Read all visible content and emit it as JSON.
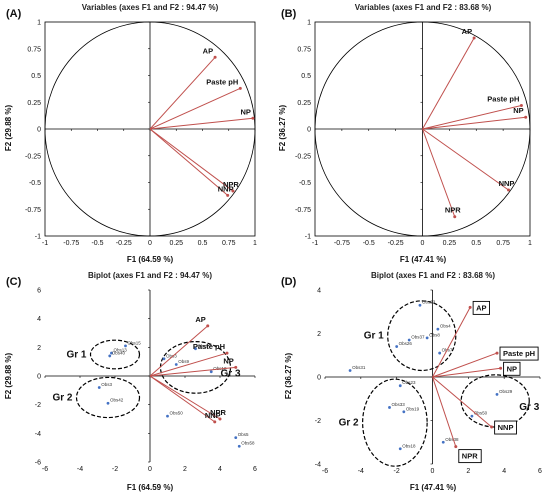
{
  "chart_data": [
    {
      "panel": "(A)",
      "type": "scatter",
      "title": "Variables (axes F1 and F2 : 94.47 %)",
      "xlabel": "F1 (64.59 %)",
      "ylabel": "F2 (29.88 %)",
      "xlim": [
        -1,
        1
      ],
      "ylim": [
        -1,
        1
      ],
      "x_ticks": [
        -1,
        -0.75,
        -0.5,
        -0.25,
        0,
        0.25,
        0.5,
        0.75,
        1
      ],
      "x_tick_labels": [
        "-1",
        "-0.75",
        "-0.5",
        "-0.25",
        "0",
        "0.25",
        "0.5",
        "0.75",
        "1"
      ],
      "y_ticks": [
        -1,
        -0.75,
        -0.5,
        -0.25,
        0,
        0.25,
        0.5,
        0.75,
        1
      ],
      "y_tick_labels": [
        "-1",
        "-0.75",
        "-0.5",
        "-0.25",
        "0",
        "0.25",
        "0.5",
        "0.75",
        "1"
      ],
      "correlation_circle": true,
      "vectors": [
        {
          "name": "AP",
          "x": 0.62,
          "y": 0.67
        },
        {
          "name": "Paste pH",
          "x": 0.86,
          "y": 0.38
        },
        {
          "name": "NP",
          "x": 0.98,
          "y": 0.1
        },
        {
          "name": "NPR",
          "x": 0.79,
          "y": -0.58
        },
        {
          "name": "NNP",
          "x": 0.74,
          "y": -0.62
        }
      ]
    },
    {
      "panel": "(B)",
      "type": "scatter",
      "title": "Variables (axes F1 and F2 : 83.68 %)",
      "xlabel": "F1 (47.41 %)",
      "ylabel": "F2 (36.27 %)",
      "xlim": [
        -1,
        1
      ],
      "ylim": [
        -1,
        1
      ],
      "x_ticks": [
        -1,
        -0.75,
        -0.5,
        -0.25,
        0,
        0.25,
        0.5,
        0.75,
        1
      ],
      "x_tick_labels": [
        "-1",
        "-0.75",
        "-0.5",
        "-0.25",
        "0",
        "0.25",
        "0.5",
        "0.75",
        "1"
      ],
      "y_ticks": [
        -1,
        -0.75,
        -0.5,
        -0.25,
        0,
        0.25,
        0.5,
        0.75,
        1
      ],
      "y_tick_labels": [
        "-1",
        "-0.75",
        "-0.5",
        "-0.25",
        "0",
        "0.25",
        "0.5",
        "0.75",
        "1"
      ],
      "correlation_circle": true,
      "vectors": [
        {
          "name": "AP",
          "x": 0.48,
          "y": 0.85
        },
        {
          "name": "Paste pH",
          "x": 0.92,
          "y": 0.22
        },
        {
          "name": "NP",
          "x": 0.96,
          "y": 0.11
        },
        {
          "name": "NNP",
          "x": 0.8,
          "y": -0.57
        },
        {
          "name": "NPR",
          "x": 0.3,
          "y": -0.82
        }
      ]
    },
    {
      "panel": "(C)",
      "type": "scatter",
      "title": "Biplot (axes F1 and F2 : 94.47 %)",
      "xlabel": "F1 (64.59 %)",
      "ylabel": "F2 (29.88 %)",
      "xlim": [
        -6,
        6
      ],
      "ylim": [
        -6,
        6
      ],
      "x_ticks": [
        -6,
        -4,
        -2,
        0,
        2,
        4,
        6
      ],
      "x_tick_labels": [
        "-6",
        "-4",
        "-2",
        "0",
        "2",
        "4",
        "6"
      ],
      "y_ticks": [
        -6,
        -4,
        -2,
        0,
        2,
        4,
        6
      ],
      "y_tick_labels": [
        "-6",
        "-4",
        "-2",
        "0",
        "2",
        "4",
        "6"
      ],
      "vectors": [
        {
          "name": "AP",
          "x": 3.3,
          "y": 3.5
        },
        {
          "name": "Paste pH",
          "x": 4.4,
          "y": 1.6
        },
        {
          "name": "NP",
          "x": 4.9,
          "y": 0.6
        },
        {
          "name": "NPR",
          "x": 4.0,
          "y": -3.0
        },
        {
          "name": "NNP",
          "x": 3.7,
          "y": -3.2
        }
      ],
      "groups": [
        {
          "name": "Gr 1",
          "center": [
            -2.0,
            1.5
          ],
          "radius": [
            1.4,
            1.0
          ]
        },
        {
          "name": "Gr 2",
          "center": [
            -2.4,
            -1.5
          ],
          "radius": [
            1.8,
            1.4
          ]
        },
        {
          "name": "Gr 3",
          "center": [
            2.6,
            0.6
          ],
          "radius": [
            2.0,
            1.8
          ]
        }
      ],
      "observations": [
        {
          "label": "Obs15",
          "x": -1.4,
          "y": 2.1
        },
        {
          "label": "Obs13",
          "x": -2.2,
          "y": 1.6
        },
        {
          "label": "Obs40",
          "x": -2.3,
          "y": 1.4
        },
        {
          "label": "Obs3",
          "x": 0.8,
          "y": 1.2
        },
        {
          "label": "Obs39",
          "x": 2.6,
          "y": 1.9
        },
        {
          "label": "Obs9",
          "x": 1.5,
          "y": 0.8
        },
        {
          "label": "Obs10",
          "x": 3.5,
          "y": 0.3
        },
        {
          "label": "Obs50",
          "x": 1.0,
          "y": -2.8
        },
        {
          "label": "Obs5",
          "x": 4.9,
          "y": -4.3
        },
        {
          "label": "Obs58",
          "x": 5.1,
          "y": -4.9
        },
        {
          "label": "Obs3",
          "x": -2.9,
          "y": -0.8
        },
        {
          "label": "Obs42",
          "x": -2.4,
          "y": -1.9
        }
      ]
    },
    {
      "panel": "(D)",
      "type": "scatter",
      "title": "Biplot (axes F1 and F2 : 83.68 %)",
      "xlabel": "F1 (47.41 %)",
      "ylabel": "F2 (36.27 %)",
      "xlim": [
        -6,
        6
      ],
      "ylim": [
        -4,
        4
      ],
      "x_ticks": [
        -6,
        -4,
        -2,
        0,
        2,
        4,
        6
      ],
      "x_tick_labels": [
        "-6",
        "-4",
        "-2",
        "0",
        "2",
        "4",
        "6"
      ],
      "y_ticks": [
        -4,
        -2,
        0,
        2,
        4
      ],
      "y_tick_labels": [
        "-4",
        "-2",
        "0",
        "2",
        "4"
      ],
      "vectors": [
        {
          "name": "AP",
          "x": 2.1,
          "y": 3.2
        },
        {
          "name": "Paste pH",
          "x": 3.6,
          "y": 1.1
        },
        {
          "name": "NP",
          "x": 3.8,
          "y": 0.4
        },
        {
          "name": "NNP",
          "x": 3.3,
          "y": -2.3
        },
        {
          "name": "NPR",
          "x": 1.3,
          "y": -3.2
        }
      ],
      "groups": [
        {
          "name": "Gr 1",
          "center": [
            -0.6,
            1.9
          ],
          "radius": [
            1.9,
            1.6
          ]
        },
        {
          "name": "Gr 2",
          "center": [
            -2.1,
            -2.1
          ],
          "radius": [
            1.8,
            2.0
          ]
        },
        {
          "name": "Gr 3",
          "center": [
            3.5,
            -1.1
          ],
          "radius": [
            1.9,
            1.2
          ]
        }
      ],
      "observations": [
        {
          "label": "Obs23",
          "x": -0.7,
          "y": 3.3
        },
        {
          "label": "Obs4",
          "x": 0.3,
          "y": 2.2
        },
        {
          "label": "Obs8",
          "x": -0.3,
          "y": 1.8
        },
        {
          "label": "Obs37",
          "x": -1.3,
          "y": 1.7
        },
        {
          "label": "Obs26",
          "x": -2.0,
          "y": 1.4
        },
        {
          "label": "Obs7",
          "x": 0.4,
          "y": 1.1
        },
        {
          "label": "Obs31",
          "x": -4.6,
          "y": 0.3
        },
        {
          "label": "Obs23",
          "x": -1.8,
          "y": -0.4
        },
        {
          "label": "Obs29",
          "x": 3.6,
          "y": -0.8
        },
        {
          "label": "Obs50",
          "x": 2.2,
          "y": -1.8
        },
        {
          "label": "Obs33",
          "x": -2.4,
          "y": -1.4
        },
        {
          "label": "Obs19",
          "x": -1.6,
          "y": -1.6
        },
        {
          "label": "Obs18",
          "x": -1.8,
          "y": -3.3
        },
        {
          "label": "Obs38",
          "x": 0.6,
          "y": -3.0
        }
      ]
    }
  ],
  "colors": {
    "vector": "#c0504d",
    "observation": "#4472c4",
    "axis": "#000000",
    "circle": "#000000"
  }
}
